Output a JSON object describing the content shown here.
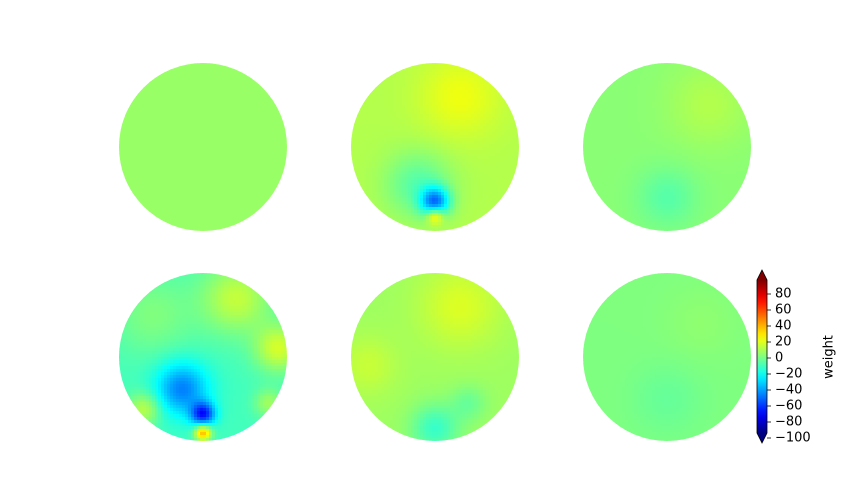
{
  "chart_data": {
    "type": "heatmap",
    "title": "",
    "layout": {
      "rows": 2,
      "cols": 3
    },
    "colormap": "jet",
    "vmin": -100,
    "vmax": 100,
    "colorbar": {
      "label": "weight",
      "ticks": [
        80,
        60,
        40,
        20,
        0,
        -20,
        -40,
        -60,
        -80,
        -100
      ],
      "tick_labels": [
        "80",
        "60",
        "40",
        "20",
        "0",
        "−20",
        "−40",
        "−60",
        "−80",
        "−100"
      ],
      "extend": "both"
    },
    "panels": [
      {
        "base": 5,
        "blobs": []
      },
      {
        "base": 10,
        "blobs": [
          {
            "x": 0.0,
            "y": 0.65,
            "s": 0.12,
            "v": -55
          },
          {
            "x": 0.0,
            "y": 0.82,
            "s": 0.07,
            "v": 32
          },
          {
            "x": -0.2,
            "y": 0.45,
            "s": 0.28,
            "v": -18
          },
          {
            "x": 0.3,
            "y": -0.6,
            "s": 0.35,
            "v": 12
          }
        ]
      },
      {
        "base": 2,
        "blobs": [
          {
            "x": 0.0,
            "y": 0.6,
            "s": 0.25,
            "v": -10
          },
          {
            "x": 0.5,
            "y": -0.5,
            "s": 0.35,
            "v": 8
          }
        ]
      },
      {
        "base": -12,
        "blobs": [
          {
            "x": 0.0,
            "y": 0.68,
            "s": 0.1,
            "v": -55
          },
          {
            "x": -0.25,
            "y": 0.38,
            "s": 0.22,
            "v": -38
          },
          {
            "x": 0.0,
            "y": 0.9,
            "s": 0.07,
            "v": 55
          },
          {
            "x": -0.7,
            "y": 0.62,
            "s": 0.14,
            "v": 24
          },
          {
            "x": 0.78,
            "y": 0.55,
            "s": 0.12,
            "v": 18
          },
          {
            "x": 0.9,
            "y": -0.1,
            "s": 0.2,
            "v": 28
          },
          {
            "x": 0.4,
            "y": -0.7,
            "s": 0.3,
            "v": 25
          },
          {
            "x": -0.6,
            "y": -0.5,
            "s": 0.35,
            "v": 12
          }
        ]
      },
      {
        "base": 6,
        "blobs": [
          {
            "x": 0.0,
            "y": 0.85,
            "s": 0.2,
            "v": -20
          },
          {
            "x": 0.4,
            "y": 0.55,
            "s": 0.15,
            "v": -10
          },
          {
            "x": 0.3,
            "y": -0.6,
            "s": 0.35,
            "v": 12
          },
          {
            "x": -0.8,
            "y": 0.1,
            "s": 0.25,
            "v": 8
          }
        ]
      },
      {
        "base": 0,
        "blobs": [
          {
            "x": 0.0,
            "y": 0.5,
            "s": 0.3,
            "v": -5
          },
          {
            "x": 0.4,
            "y": -0.4,
            "s": 0.3,
            "v": 3
          }
        ]
      }
    ]
  }
}
